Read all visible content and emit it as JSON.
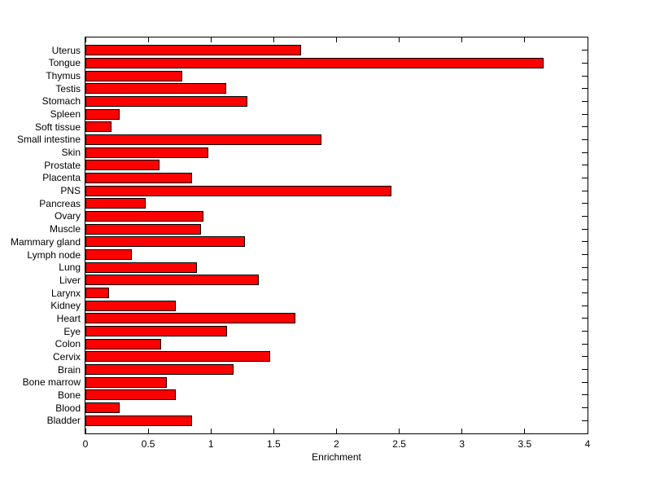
{
  "chart_data": {
    "type": "bar",
    "orientation": "horizontal",
    "title": "",
    "xlabel": "Enrichment",
    "ylabel": "",
    "xlim": [
      0,
      4
    ],
    "xticks": [
      0,
      0.5,
      1,
      1.5,
      2,
      2.5,
      3,
      3.5,
      4
    ],
    "xtick_labels": [
      "0",
      "0.5",
      "1",
      "1.5",
      "2",
      "2.5",
      "3",
      "3.5",
      "4"
    ],
    "grid": false,
    "legend": false,
    "bar_color": "#FF0000",
    "bar_edge_color": "#000000",
    "axis_color": "#000000",
    "background_color": "#FFFFFF",
    "categories_top_to_bottom": [
      "Uterus",
      "Tongue",
      "Thymus",
      "Testis",
      "Stomach",
      "Spleen",
      "Soft tissue",
      "Small intestine",
      "Skin",
      "Prostate",
      "Placenta",
      "PNS",
      "Pancreas",
      "Ovary",
      "Muscle",
      "Mammary gland",
      "Lymph node",
      "Lung",
      "Liver",
      "Larynx",
      "Kidney",
      "Heart",
      "Eye",
      "Colon",
      "Cervix",
      "Brain",
      "Bone marrow",
      "Bone",
      "Blood",
      "Bladder"
    ],
    "values": [
      1.72,
      3.65,
      0.77,
      1.12,
      1.29,
      0.27,
      0.21,
      1.88,
      0.98,
      0.59,
      0.85,
      2.44,
      0.48,
      0.94,
      0.92,
      1.27,
      0.37,
      0.89,
      1.38,
      0.19,
      0.72,
      1.67,
      1.13,
      0.6,
      1.47,
      1.18,
      0.65,
      0.72,
      0.27,
      0.85
    ]
  }
}
